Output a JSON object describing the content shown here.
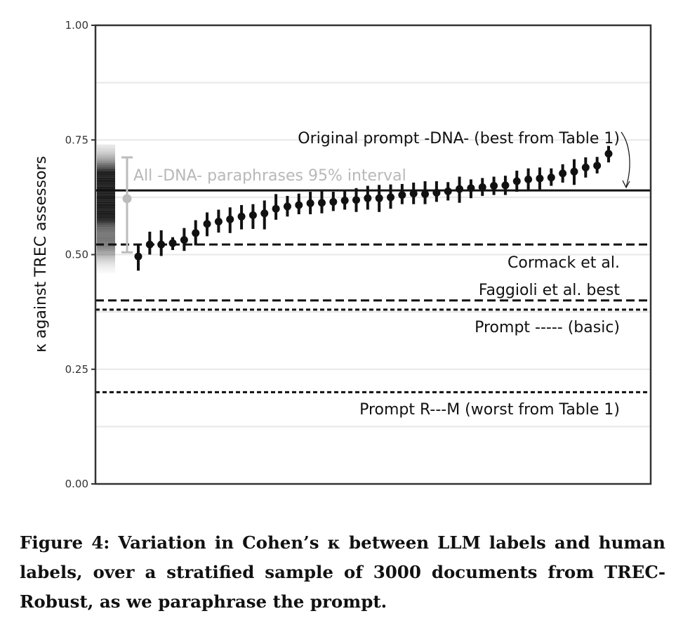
{
  "chart_data": {
    "type": "scatter",
    "ylabel": "κ against TREC assessors",
    "ylim": [
      0,
      1
    ],
    "y_ticks": [
      {
        "value": 0.0,
        "label": "0.00"
      },
      {
        "value": 0.25,
        "label": "0.25"
      },
      {
        "value": 0.5,
        "label": "0.50"
      },
      {
        "value": 0.75,
        "label": "0.75"
      },
      {
        "value": 1.0,
        "label": "1.00"
      }
    ],
    "minor_grid": [
      0.125,
      0.375,
      0.625,
      0.875
    ],
    "grid": true,
    "series": [
      {
        "name": "paraphrases",
        "points": [
          {
            "y": 0.496,
            "lo": 0.465,
            "hi": 0.522
          },
          {
            "y": 0.522,
            "lo": 0.5,
            "hi": 0.55
          },
          {
            "y": 0.522,
            "lo": 0.497,
            "hi": 0.553
          },
          {
            "y": 0.525,
            "lo": 0.51,
            "hi": 0.538
          },
          {
            "y": 0.532,
            "lo": 0.508,
            "hi": 0.558
          },
          {
            "y": 0.547,
            "lo": 0.52,
            "hi": 0.575
          },
          {
            "y": 0.567,
            "lo": 0.54,
            "hi": 0.592
          },
          {
            "y": 0.572,
            "lo": 0.548,
            "hi": 0.598
          },
          {
            "y": 0.577,
            "lo": 0.547,
            "hi": 0.603
          },
          {
            "y": 0.583,
            "lo": 0.555,
            "hi": 0.608
          },
          {
            "y": 0.586,
            "lo": 0.556,
            "hi": 0.61
          },
          {
            "y": 0.59,
            "lo": 0.555,
            "hi": 0.618
          },
          {
            "y": 0.6,
            "lo": 0.576,
            "hi": 0.632
          },
          {
            "y": 0.605,
            "lo": 0.583,
            "hi": 0.628
          },
          {
            "y": 0.608,
            "lo": 0.588,
            "hi": 0.633
          },
          {
            "y": 0.612,
            "lo": 0.588,
            "hi": 0.637
          },
          {
            "y": 0.613,
            "lo": 0.59,
            "hi": 0.64
          },
          {
            "y": 0.615,
            "lo": 0.595,
            "hi": 0.637
          },
          {
            "y": 0.618,
            "lo": 0.598,
            "hi": 0.64
          },
          {
            "y": 0.619,
            "lo": 0.593,
            "hi": 0.645
          },
          {
            "y": 0.623,
            "lo": 0.598,
            "hi": 0.65
          },
          {
            "y": 0.623,
            "lo": 0.593,
            "hi": 0.652
          },
          {
            "y": 0.625,
            "lo": 0.6,
            "hi": 0.653
          },
          {
            "y": 0.63,
            "lo": 0.61,
            "hi": 0.654
          },
          {
            "y": 0.633,
            "lo": 0.61,
            "hi": 0.657
          },
          {
            "y": 0.632,
            "lo": 0.61,
            "hi": 0.66
          },
          {
            "y": 0.635,
            "lo": 0.615,
            "hi": 0.66
          },
          {
            "y": 0.638,
            "lo": 0.618,
            "hi": 0.658
          },
          {
            "y": 0.643,
            "lo": 0.613,
            "hi": 0.67
          },
          {
            "y": 0.645,
            "lo": 0.623,
            "hi": 0.664
          },
          {
            "y": 0.647,
            "lo": 0.628,
            "hi": 0.667
          },
          {
            "y": 0.65,
            "lo": 0.63,
            "hi": 0.67
          },
          {
            "y": 0.651,
            "lo": 0.63,
            "hi": 0.672
          },
          {
            "y": 0.66,
            "lo": 0.637,
            "hi": 0.683
          },
          {
            "y": 0.664,
            "lo": 0.64,
            "hi": 0.688
          },
          {
            "y": 0.666,
            "lo": 0.642,
            "hi": 0.69
          },
          {
            "y": 0.668,
            "lo": 0.65,
            "hi": 0.688
          },
          {
            "y": 0.677,
            "lo": 0.657,
            "hi": 0.697
          },
          {
            "y": 0.681,
            "lo": 0.652,
            "hi": 0.708
          },
          {
            "y": 0.69,
            "lo": 0.668,
            "hi": 0.712
          },
          {
            "y": 0.694,
            "lo": 0.677,
            "hi": 0.713
          },
          {
            "y": 0.72,
            "lo": 0.701,
            "hi": 0.737
          }
        ]
      }
    ],
    "reference_lines": [
      {
        "name": "original-prompt",
        "value": 0.64,
        "style": "solid",
        "label": "Original prompt -DNA- (best from Table 1)"
      },
      {
        "name": "cormack",
        "value": 0.522,
        "style": "dashed",
        "label": "Cormack et al."
      },
      {
        "name": "faggioli",
        "value": 0.4,
        "style": "dashed",
        "label": "Faggioli et al. best"
      },
      {
        "name": "basic",
        "value": 0.38,
        "style": "dotted",
        "label": "Prompt ----- (basic)"
      },
      {
        "name": "worst",
        "value": 0.2,
        "style": "dotted",
        "label": "Prompt R---M (worst from Table 1)"
      }
    ],
    "interval": {
      "label": "All -DNA- paraphrases 95% interval",
      "mean": 0.622,
      "lo": 0.505,
      "hi": 0.712,
      "density_range": [
        0.46,
        0.74
      ]
    }
  },
  "caption": "Figure 4: Variation in Cohen’s κ between LLM labels and human labels, over a stratified sample of 3000 documents from TREC-Robust, as we paraphrase the prompt.",
  "colors": {
    "axis": "#333333",
    "grid": "#e8e8e8",
    "point": "#111111",
    "interval": "#bcbcbc"
  }
}
